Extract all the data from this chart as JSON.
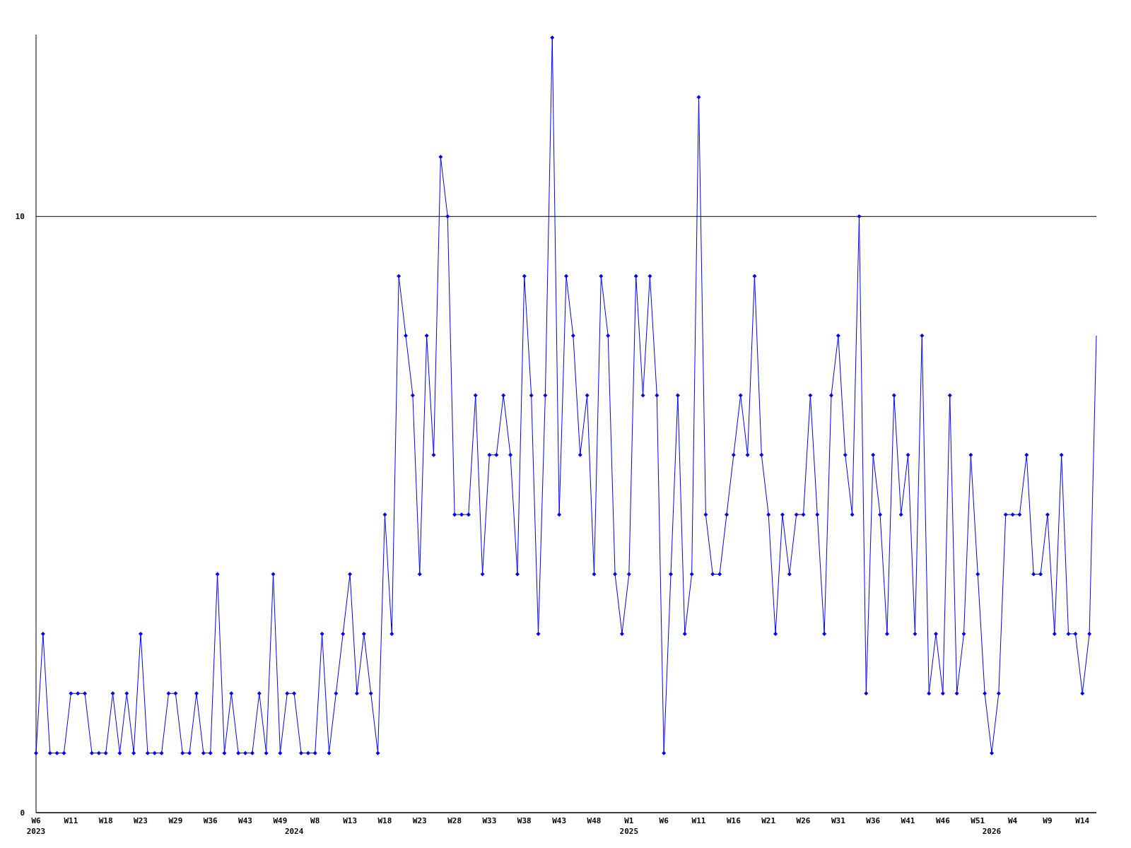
{
  "chart_data": {
    "type": "line",
    "categories": [
      "W6\n2023",
      null,
      null,
      null,
      null,
      "W11",
      null,
      null,
      null,
      null,
      "W18",
      null,
      null,
      null,
      null,
      "W23",
      null,
      null,
      null,
      null,
      "W29",
      null,
      null,
      null,
      null,
      "W36",
      null,
      null,
      null,
      null,
      "W43",
      null,
      null,
      null,
      null,
      "W49",
      null,
      "\n2024",
      null,
      null,
      "W8",
      null,
      null,
      null,
      null,
      "W13",
      null,
      null,
      null,
      null,
      "W18",
      null,
      null,
      null,
      null,
      "W23",
      null,
      null,
      null,
      null,
      "W28",
      null,
      null,
      null,
      null,
      "W33",
      null,
      null,
      null,
      null,
      "W38",
      null,
      null,
      null,
      null,
      "W43",
      null,
      null,
      null,
      null,
      "W48",
      null,
      null,
      null,
      null,
      "W1\n2025",
      null,
      null,
      null,
      null,
      "W6",
      null,
      null,
      null,
      null,
      "W11",
      null,
      null,
      null,
      null,
      "W16",
      null,
      null,
      null,
      null,
      "W21",
      null,
      null,
      null,
      null,
      "W26",
      null,
      null,
      null,
      null,
      "W31",
      null,
      null,
      null,
      null,
      "W36",
      null,
      null,
      null,
      null,
      "W41",
      null,
      null,
      null,
      null,
      "W46",
      null,
      null,
      null,
      null,
      "W51",
      null,
      "\n2026",
      null,
      null,
      "W4",
      null,
      null,
      null,
      null,
      "W9",
      null,
      null,
      null,
      null,
      "W14",
      null,
      null
    ],
    "series": [
      {
        "color": "#0000ff",
        "values": [
          1,
          3,
          1,
          1,
          1,
          2,
          2,
          2,
          1,
          1,
          1,
          2,
          1,
          2,
          1,
          3,
          1,
          1,
          1,
          2,
          2,
          1,
          1,
          2,
          1,
          1,
          4,
          1,
          2,
          1,
          1,
          1,
          2,
          1,
          4,
          1,
          2,
          2,
          1,
          1,
          1,
          3,
          1,
          2,
          3,
          4,
          2,
          3,
          2,
          1,
          5,
          3,
          9,
          8,
          7,
          4,
          8,
          6,
          11,
          10,
          5,
          5,
          5,
          7,
          4,
          6,
          6,
          7,
          6,
          4,
          9,
          7,
          3,
          7,
          13,
          5,
          9,
          8,
          6,
          7,
          4,
          9,
          8,
          4,
          3,
          4,
          9,
          7,
          9,
          7,
          1,
          4,
          7,
          3,
          4,
          12,
          5,
          4,
          4,
          5,
          6,
          7,
          6,
          9,
          6,
          5,
          3,
          5,
          4,
          5,
          5,
          7,
          5,
          3,
          7,
          8,
          6,
          5,
          10,
          2,
          6,
          5,
          3,
          7,
          5,
          6,
          3,
          8,
          2,
          3,
          2,
          7,
          2,
          3,
          6,
          4,
          2,
          1,
          2,
          5,
          5,
          5,
          6,
          4,
          4,
          5,
          3,
          6,
          3,
          3,
          2,
          3,
          8
        ]
      }
    ],
    "ylim": [
      0,
      13.05
    ],
    "yticks": [
      0,
      10
    ],
    "grid": "y",
    "marker": "diamond",
    "line_style": "solid"
  }
}
